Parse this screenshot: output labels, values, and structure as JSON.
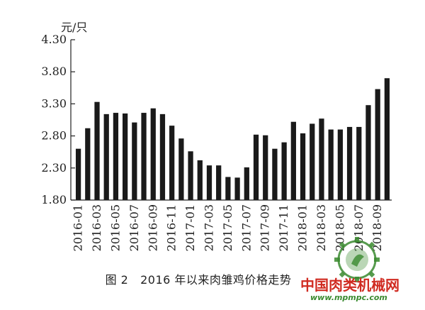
{
  "chart_data": {
    "type": "bar",
    "unit_label": "元/只",
    "caption_figure": "图 2",
    "caption_title": "2016 年以来肉雏鸡价格走势",
    "ylim": [
      1.8,
      4.3
    ],
    "yticks": [
      "1.80",
      "2.30",
      "2.80",
      "3.30",
      "3.80",
      "4.30"
    ],
    "grid": false,
    "bar_color": "#1a1a1a",
    "categories": [
      "2016-01",
      "2016-02",
      "2016-03",
      "2016-04",
      "2016-05",
      "2016-06",
      "2016-07",
      "2016-08",
      "2016-09",
      "2016-10",
      "2016-11",
      "2016-12",
      "2017-01",
      "2017-02",
      "2017-03",
      "2017-04",
      "2017-05",
      "2017-06",
      "2017-07",
      "2017-08",
      "2017-09",
      "2017-10",
      "2017-11",
      "2017-12",
      "2018-01",
      "2018-02",
      "2018-03",
      "2018-04",
      "2018-05",
      "2018-06",
      "2018-07",
      "2018-08",
      "2018-09",
      "2018-10"
    ],
    "xtick_labels": [
      "2016-01",
      "2016-03",
      "2016-05",
      "2016-07",
      "2016-09",
      "2016-11",
      "2017-01",
      "2017-03",
      "2017-05",
      "2017-07",
      "2017-09",
      "2017-11",
      "2018-01",
      "2018-03",
      "2018-05",
      "2018-07",
      "2018-09"
    ],
    "values": [
      2.6,
      2.92,
      3.33,
      3.14,
      3.16,
      3.15,
      3.01,
      3.16,
      3.23,
      3.14,
      2.96,
      2.76,
      2.56,
      2.42,
      2.34,
      2.34,
      2.16,
      2.15,
      2.31,
      2.82,
      2.81,
      2.6,
      2.7,
      3.02,
      2.84,
      2.99,
      3.07,
      2.9,
      2.9,
      2.94,
      2.94,
      3.28,
      3.53,
      3.7
    ]
  },
  "watermark": {
    "site_name": "中国肉类机械网",
    "url": "www.mpmpc.com",
    "green": "#3a8a2f",
    "red": "#d02b21"
  }
}
